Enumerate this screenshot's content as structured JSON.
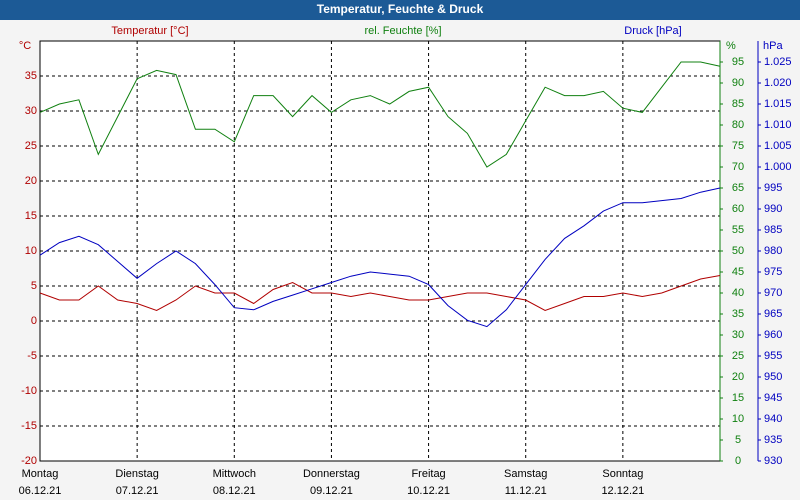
{
  "chart_data": {
    "type": "line",
    "title": "Temperatur, Feuchte & Druck",
    "ylabel": "°C",
    "y2label": "%",
    "y3label": "hPa",
    "xlim": [
      0,
      7
    ],
    "xticks": [
      {
        "value": 0,
        "label": "Montag",
        "date": "06.12.21"
      },
      {
        "value": 1,
        "label": "Dienstag",
        "date": "07.12.21"
      },
      {
        "value": 2,
        "label": "Mittwoch",
        "date": "08.12.21"
      },
      {
        "value": 3,
        "label": "Donnerstag",
        "date": "09.12.21"
      },
      {
        "value": 4,
        "label": "Freitag",
        "date": "10.12.21"
      },
      {
        "value": 5,
        "label": "Samstag",
        "date": "11.12.21"
      },
      {
        "value": 6,
        "label": "Sonntag",
        "date": "12.12.21"
      }
    ],
    "ylim": [
      -20,
      40
    ],
    "yticks": [
      -20,
      -15,
      -10,
      -5,
      0,
      5,
      10,
      15,
      20,
      25,
      30,
      35
    ],
    "y2lim": [
      0,
      100
    ],
    "y2ticks": [
      0,
      5,
      10,
      15,
      20,
      25,
      30,
      35,
      40,
      45,
      50,
      55,
      60,
      65,
      70,
      75,
      80,
      85,
      90,
      95
    ],
    "y3lim": [
      930,
      1030
    ],
    "y3ticks": [
      930,
      935,
      940,
      945,
      950,
      955,
      960,
      965,
      970,
      975,
      980,
      985,
      990,
      995,
      {
        "value": 1000,
        "label": "1.000"
      },
      {
        "value": 1005,
        "label": "1.005"
      },
      {
        "value": 1010,
        "label": "1.010"
      },
      {
        "value": 1015,
        "label": "1.015"
      },
      {
        "value": 1020,
        "label": "1.020"
      },
      {
        "value": 1025,
        "label": "1.025"
      }
    ],
    "grid": true,
    "x": [
      0,
      0.2,
      0.4,
      0.6,
      0.8,
      1.0,
      1.2,
      1.4,
      1.6,
      1.8,
      2.0,
      2.2,
      2.4,
      2.6,
      2.8,
      3.0,
      3.2,
      3.4,
      3.6,
      3.8,
      4.0,
      4.2,
      4.4,
      4.6,
      4.8,
      5.0,
      5.2,
      5.4,
      5.6,
      5.8,
      6.0,
      6.2,
      6.4,
      6.6,
      6.8,
      7.0
    ],
    "series": [
      {
        "name": "Temperatur [°C]",
        "color": "#b00000",
        "axis": "y",
        "values": [
          4,
          3,
          3,
          5,
          3,
          2.5,
          1.5,
          3,
          5,
          4,
          4,
          2.5,
          4.5,
          5.5,
          4,
          4,
          3.5,
          4,
          3.5,
          3,
          3,
          3.5,
          4,
          4,
          3.5,
          3,
          1.5,
          2.5,
          3.5,
          3.5,
          4,
          3.5,
          4,
          5,
          6,
          6.5
        ]
      },
      {
        "name": "rel. Feuchte [%]",
        "color": "#108010",
        "axis": "y2",
        "values": [
          83,
          85,
          86,
          73,
          82,
          91,
          93,
          92,
          79,
          79,
          76,
          87,
          87,
          82,
          87,
          83,
          86,
          87,
          85,
          88,
          89,
          82,
          78,
          70,
          73,
          81,
          89,
          87,
          87,
          88,
          84,
          83,
          89,
          95,
          95,
          94
        ]
      },
      {
        "name": "Druck [hPa]",
        "color": "#0000c0",
        "axis": "y3",
        "values": [
          979,
          982,
          983.5,
          981.5,
          977.5,
          973.5,
          977,
          980,
          977,
          972,
          966.5,
          966,
          968,
          969.5,
          971,
          972.5,
          974,
          975,
          974.5,
          974,
          972,
          967,
          963.5,
          962,
          966,
          972,
          978,
          983,
          986,
          989.5,
          991.5,
          991.5,
          992,
          992.5,
          994,
          995
        ]
      }
    ]
  }
}
